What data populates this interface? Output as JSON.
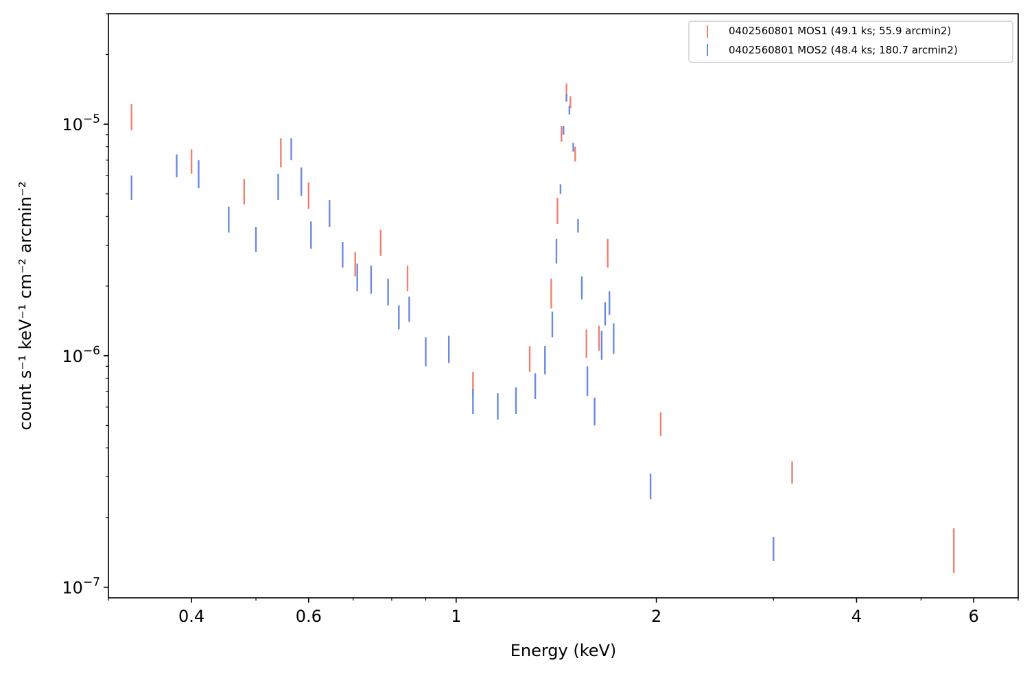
{
  "chart_data": {
    "type": "scatter",
    "title": "",
    "xlabel": "Energy (keV)",
    "ylabel": "count s⁻¹ keV⁻¹ cm⁻² arcmin⁻²",
    "xscale": "log",
    "yscale": "log",
    "xlim": [
      0.3,
      7.0
    ],
    "ylim": [
      9e-08,
      3e-05
    ],
    "grid": false,
    "legend_position": "top-right",
    "x_ticks": [
      {
        "value": 0.4,
        "label": "0.4"
      },
      {
        "value": 0.6,
        "label": "0.6"
      },
      {
        "value": 1,
        "label": "1"
      },
      {
        "value": 2,
        "label": "2"
      },
      {
        "value": 4,
        "label": "4"
      },
      {
        "value": 6,
        "label": "6"
      }
    ],
    "x_minor_ticks": [
      0.3,
      0.5,
      0.7,
      0.8,
      0.9,
      3,
      5,
      7
    ],
    "y_ticks": [
      {
        "value": 1e-07,
        "base": "10",
        "exp": "−7"
      },
      {
        "value": 1e-06,
        "base": "10",
        "exp": "−6"
      },
      {
        "value": 1e-05,
        "base": "10",
        "exp": "−5"
      }
    ],
    "y_minor_ticks": [
      2e-07,
      3e-07,
      4e-07,
      5e-07,
      6e-07,
      7e-07,
      8e-07,
      9e-07,
      2e-06,
      3e-06,
      4e-06,
      5e-06,
      6e-06,
      7e-06,
      8e-06,
      9e-06,
      2e-05,
      3e-05
    ],
    "series": [
      {
        "name": "0402560801 MOS1 (49.1 ks; 55.9 arcmin2)",
        "color": "#f08070",
        "points": [
          {
            "x": 0.325,
            "lo": 9.4e-06,
            "hi": 1.22e-05
          },
          {
            "x": 0.4,
            "lo": 6.1e-06,
            "hi": 7.8e-06
          },
          {
            "x": 0.48,
            "lo": 4.5e-06,
            "hi": 5.8e-06
          },
          {
            "x": 0.545,
            "lo": 6.5e-06,
            "hi": 8.7e-06
          },
          {
            "x": 0.6,
            "lo": 4.3e-06,
            "hi": 5.6e-06
          },
          {
            "x": 0.705,
            "lo": 2.2e-06,
            "hi": 2.8e-06
          },
          {
            "x": 0.77,
            "lo": 2.7e-06,
            "hi": 3.5e-06
          },
          {
            "x": 0.845,
            "lo": 1.9e-06,
            "hi": 2.45e-06
          },
          {
            "x": 1.06,
            "lo": 6.6e-07,
            "hi": 8.5e-07
          },
          {
            "x": 1.29,
            "lo": 8.5e-07,
            "hi": 1.1e-06
          },
          {
            "x": 1.39,
            "lo": 1.6e-06,
            "hi": 2.15e-06
          },
          {
            "x": 1.42,
            "lo": 3.7e-06,
            "hi": 4.8e-06
          },
          {
            "x": 1.44,
            "lo": 8.4e-06,
            "hi": 9.8e-06
          },
          {
            "x": 1.465,
            "lo": 1.3e-05,
            "hi": 1.5e-05
          },
          {
            "x": 1.485,
            "lo": 1.17e-05,
            "hi": 1.32e-05
          },
          {
            "x": 1.51,
            "lo": 6.9e-06,
            "hi": 8e-06
          },
          {
            "x": 1.57,
            "lo": 9.8e-07,
            "hi": 1.3e-06
          },
          {
            "x": 1.64,
            "lo": 1.05e-06,
            "hi": 1.35e-06
          },
          {
            "x": 1.69,
            "lo": 2.4e-06,
            "hi": 3.2e-06
          },
          {
            "x": 2.03,
            "lo": 4.5e-07,
            "hi": 5.7e-07
          },
          {
            "x": 3.2,
            "lo": 2.8e-07,
            "hi": 3.5e-07
          },
          {
            "x": 5.6,
            "lo": 1.15e-07,
            "hi": 1.8e-07
          }
        ]
      },
      {
        "name": "0402560801 MOS2 (48.4 ks; 180.7 arcmin2)",
        "color": "#6a8ae0",
        "points": [
          {
            "x": 0.325,
            "lo": 4.7e-06,
            "hi": 6e-06
          },
          {
            "x": 0.38,
            "lo": 5.9e-06,
            "hi": 7.4e-06
          },
          {
            "x": 0.41,
            "lo": 5.3e-06,
            "hi": 7e-06
          },
          {
            "x": 0.455,
            "lo": 3.4e-06,
            "hi": 4.4e-06
          },
          {
            "x": 0.5,
            "lo": 2.8e-06,
            "hi": 3.6e-06
          },
          {
            "x": 0.54,
            "lo": 4.7e-06,
            "hi": 6.1e-06
          },
          {
            "x": 0.565,
            "lo": 7e-06,
            "hi": 8.7e-06
          },
          {
            "x": 0.585,
            "lo": 4.9e-06,
            "hi": 6.5e-06
          },
          {
            "x": 0.605,
            "lo": 2.9e-06,
            "hi": 3.8e-06
          },
          {
            "x": 0.645,
            "lo": 3.6e-06,
            "hi": 4.7e-06
          },
          {
            "x": 0.675,
            "lo": 2.4e-06,
            "hi": 3.1e-06
          },
          {
            "x": 0.71,
            "lo": 1.9e-06,
            "hi": 2.5e-06
          },
          {
            "x": 0.745,
            "lo": 1.85e-06,
            "hi": 2.45e-06
          },
          {
            "x": 0.79,
            "lo": 1.65e-06,
            "hi": 2.15e-06
          },
          {
            "x": 0.82,
            "lo": 1.3e-06,
            "hi": 1.65e-06
          },
          {
            "x": 0.85,
            "lo": 1.4e-06,
            "hi": 1.8e-06
          },
          {
            "x": 0.9,
            "lo": 9e-07,
            "hi": 1.2e-06
          },
          {
            "x": 0.975,
            "lo": 9.3e-07,
            "hi": 1.22e-06
          },
          {
            "x": 1.06,
            "lo": 5.6e-07,
            "hi": 7.2e-07
          },
          {
            "x": 1.155,
            "lo": 5.3e-07,
            "hi": 6.9e-07
          },
          {
            "x": 1.23,
            "lo": 5.6e-07,
            "hi": 7.3e-07
          },
          {
            "x": 1.315,
            "lo": 6.5e-07,
            "hi": 8.4e-07
          },
          {
            "x": 1.36,
            "lo": 8.3e-07,
            "hi": 1.1e-06
          },
          {
            "x": 1.395,
            "lo": 1.2e-06,
            "hi": 1.55e-06
          },
          {
            "x": 1.415,
            "lo": 2.5e-06,
            "hi": 3.2e-06
          },
          {
            "x": 1.435,
            "lo": 5e-06,
            "hi": 5.5e-06
          },
          {
            "x": 1.45,
            "lo": 9e-06,
            "hi": 9.8e-06
          },
          {
            "x": 1.465,
            "lo": 1.25e-05,
            "hi": 1.35e-05
          },
          {
            "x": 1.48,
            "lo": 1.1e-05,
            "hi": 1.2e-05
          },
          {
            "x": 1.5,
            "lo": 7.6e-06,
            "hi": 8.3e-06
          },
          {
            "x": 1.525,
            "lo": 3.4e-06,
            "hi": 3.9e-06
          },
          {
            "x": 1.545,
            "lo": 1.75e-06,
            "hi": 2.2e-06
          },
          {
            "x": 1.575,
            "lo": 6.7e-07,
            "hi": 9e-07
          },
          {
            "x": 1.615,
            "lo": 5e-07,
            "hi": 6.6e-07
          },
          {
            "x": 1.655,
            "lo": 9.6e-07,
            "hi": 1.28e-06
          },
          {
            "x": 1.675,
            "lo": 1.35e-06,
            "hi": 1.7e-06
          },
          {
            "x": 1.7,
            "lo": 1.5e-06,
            "hi": 1.9e-06
          },
          {
            "x": 1.725,
            "lo": 1.02e-06,
            "hi": 1.38e-06
          },
          {
            "x": 1.96,
            "lo": 2.4e-07,
            "hi": 3.1e-07
          },
          {
            "x": 3.0,
            "lo": 1.3e-07,
            "hi": 1.65e-07
          }
        ]
      }
    ]
  }
}
